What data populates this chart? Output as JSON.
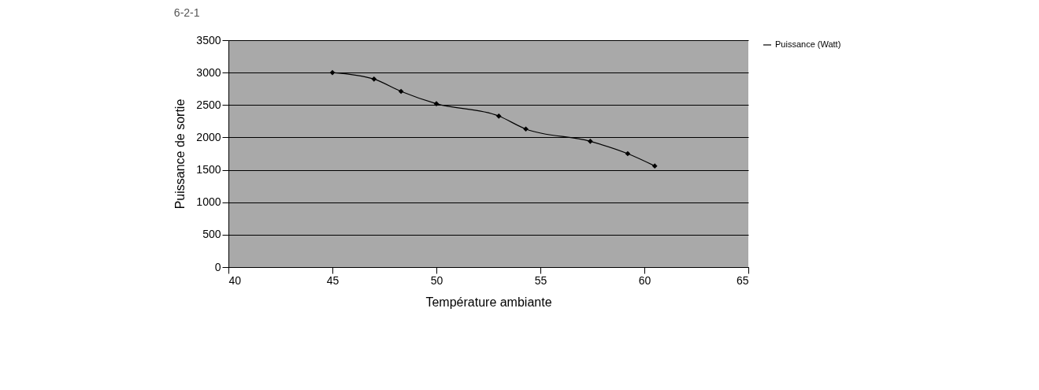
{
  "chart_data": {
    "type": "line",
    "xlabel": "Température ambiante",
    "ylabel": "Puissance de sortie",
    "annotations": [
      "6-2-1"
    ],
    "x": [
      45,
      47,
      48.3,
      50,
      53,
      54.3,
      57.4,
      59.2,
      60.5
    ],
    "series": [
      {
        "name": "Puissance (Watt)",
        "color": "#000000",
        "values": [
          3000,
          2900,
          2710,
          2520,
          2330,
          2130,
          1940,
          1750,
          1560
        ]
      }
    ],
    "xlim": [
      40,
      65
    ],
    "xticks": [
      40,
      45,
      50,
      55,
      60,
      65
    ],
    "ylim": [
      0,
      3500
    ],
    "yticks": [
      0,
      500,
      1000,
      1500,
      2000,
      2500,
      3000,
      3500
    ],
    "grid": "y",
    "legend": "right",
    "marker": "diamond",
    "line_style": "solid"
  }
}
